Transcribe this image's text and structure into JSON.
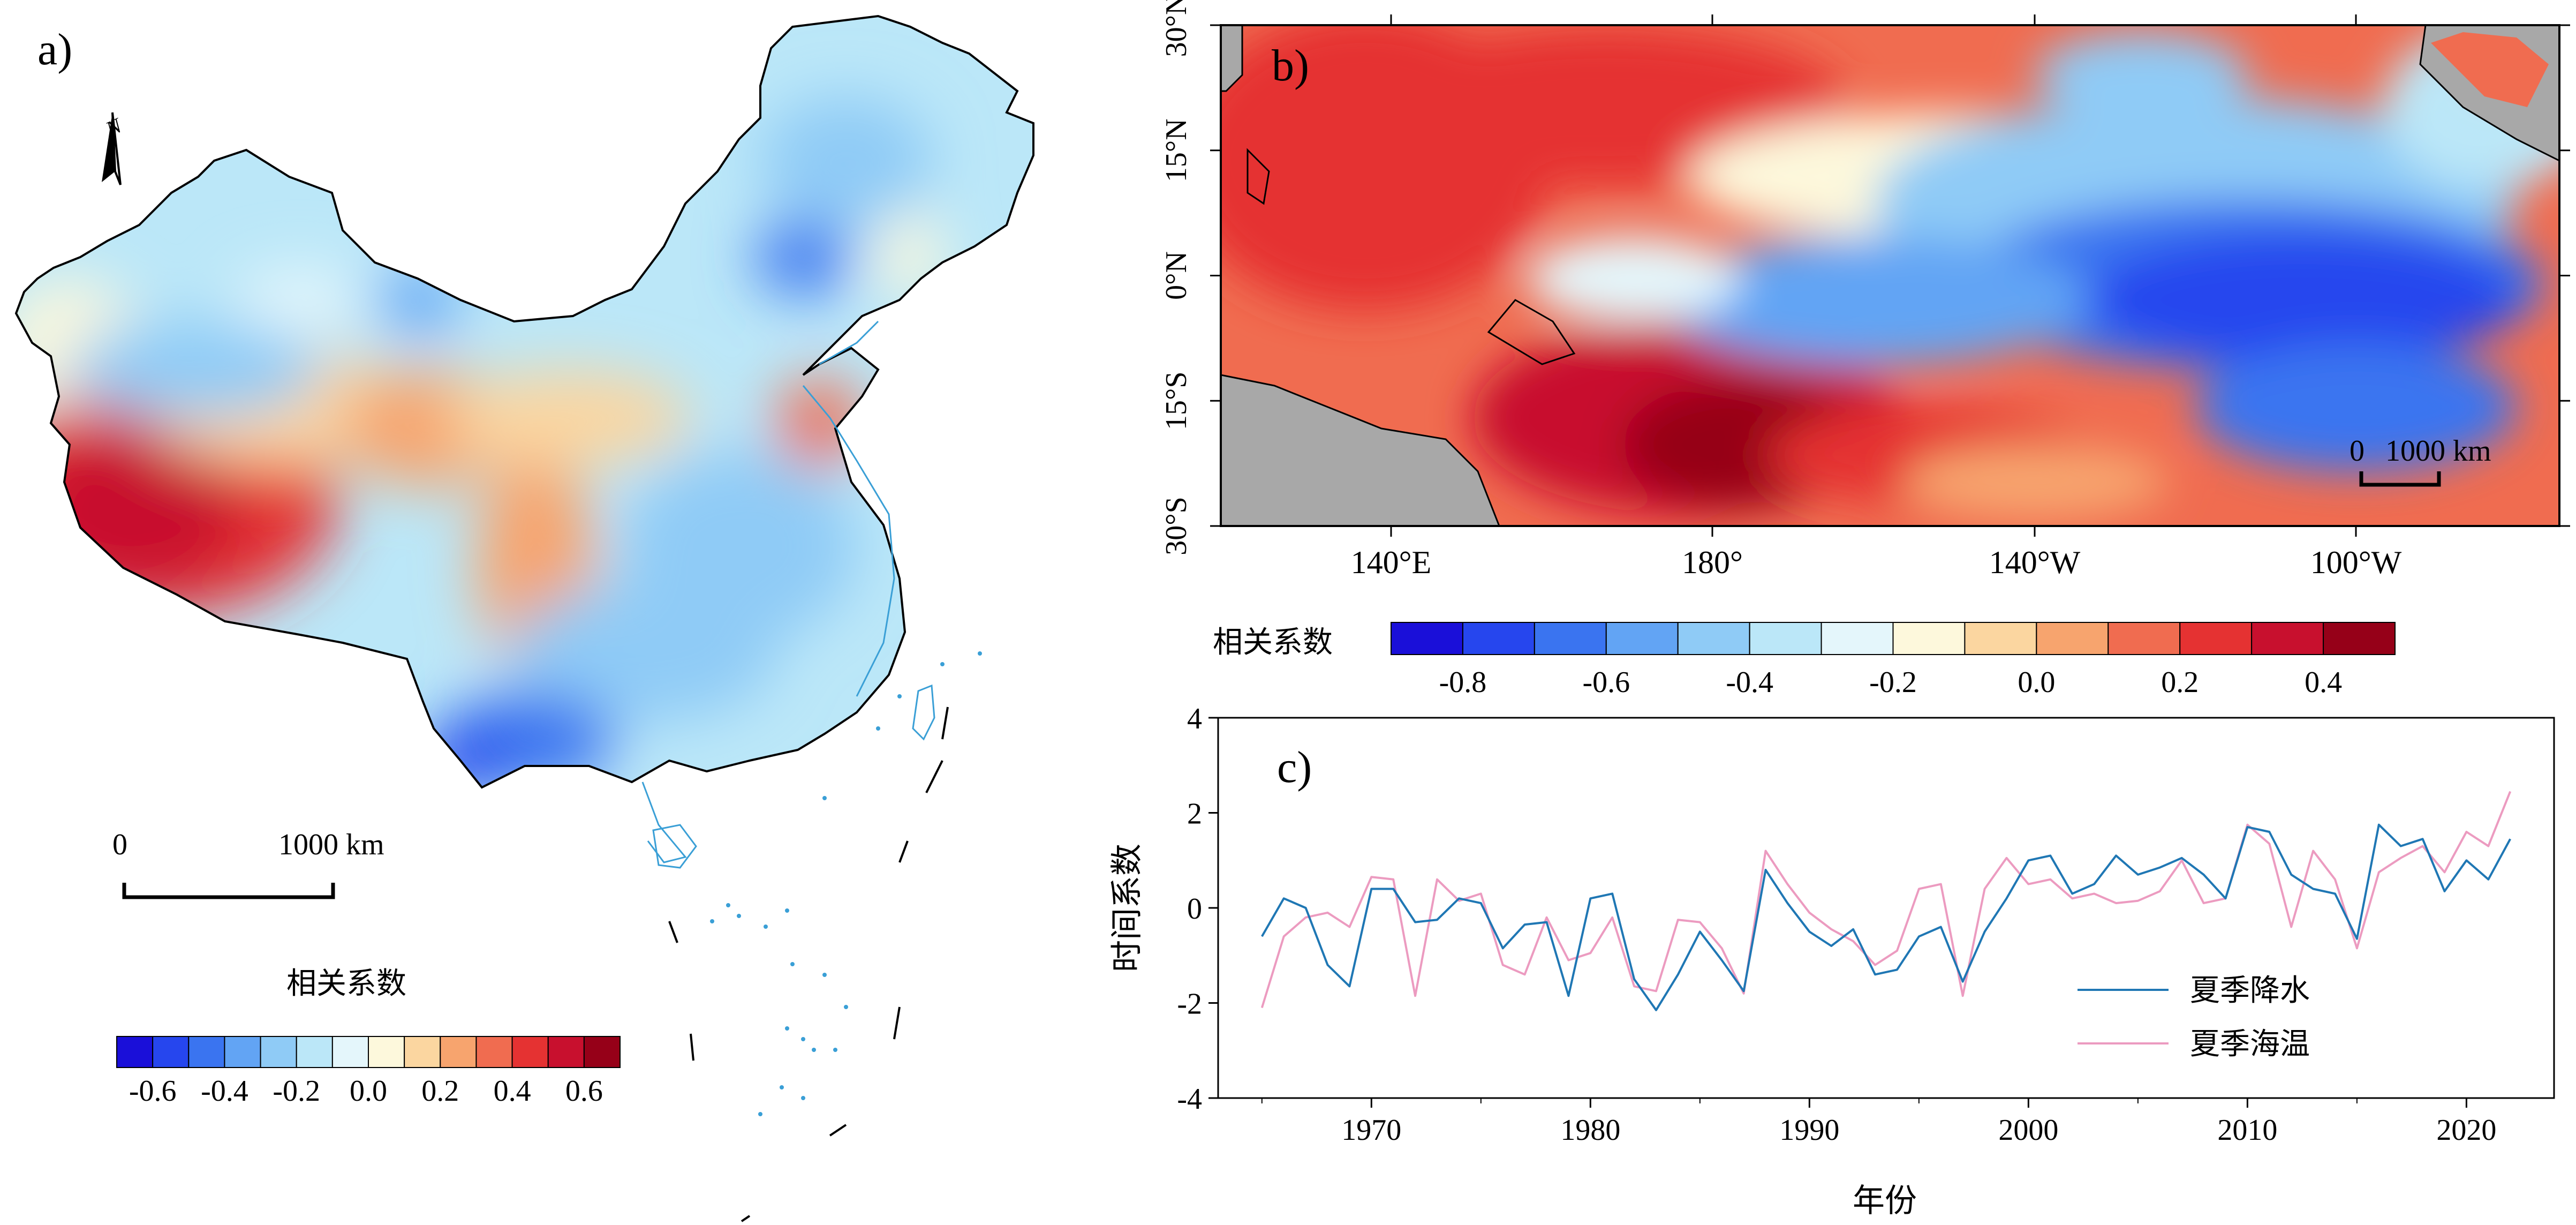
{
  "colors": {
    "ramp": [
      "#1a0fd9",
      "#2646ee",
      "#3a74f0",
      "#62a4f4",
      "#8fcbf6",
      "#bbe7f8",
      "#e4f6fb",
      "#fdf8dc",
      "#fbd6a0",
      "#f7a46e",
      "#f06c50",
      "#e53232",
      "#c8102e",
      "#960018"
    ],
    "land": "#a8a8a8",
    "line_precip": "#1f77b4",
    "line_sst": "#ec9bc0",
    "coast": "#000000",
    "river": "#3a9fd6"
  },
  "panel_a": {
    "label": "a)",
    "north_label": "N",
    "scale_bar": {
      "start": "0",
      "end": "1000 km"
    },
    "colorbar": {
      "title": "相关系数",
      "ticks": [
        "-0.6",
        "-0.4",
        "-0.2",
        "0.0",
        "0.2",
        "0.4",
        "0.6"
      ]
    }
  },
  "panel_b": {
    "label": "b)",
    "x_ticks": [
      "140°E",
      "180°",
      "140°W",
      "100°W"
    ],
    "y_ticks": [
      "30°N",
      "15°N",
      "0°N",
      "15°S",
      "30°S"
    ],
    "scale_bar": {
      "start": "0",
      "end": "1000 km"
    },
    "colorbar": {
      "title": "相关系数",
      "ticks": [
        "-0.8",
        "-0.6",
        "-0.4",
        "-0.2",
        "0.0",
        "0.2",
        "0.4"
      ]
    }
  },
  "chart_data": {
    "type": "line",
    "label": "c)",
    "title": "",
    "xlabel": "年份",
    "ylabel": "时间系数",
    "xlim": [
      1963,
      2024
    ],
    "ylim": [
      -4,
      4
    ],
    "x_ticks": [
      1970,
      1980,
      1990,
      2000,
      2010,
      2020
    ],
    "y_ticks": [
      -4,
      -2,
      0,
      2,
      4
    ],
    "legend_position": "lower-right",
    "x": [
      1965,
      1966,
      1967,
      1968,
      1969,
      1970,
      1971,
      1972,
      1973,
      1974,
      1975,
      1976,
      1977,
      1978,
      1979,
      1980,
      1981,
      1982,
      1983,
      1984,
      1985,
      1986,
      1987,
      1988,
      1989,
      1990,
      1991,
      1992,
      1993,
      1994,
      1995,
      1996,
      1997,
      1998,
      1999,
      2000,
      2001,
      2002,
      2003,
      2004,
      2005,
      2006,
      2007,
      2008,
      2009,
      2010,
      2011,
      2012,
      2013,
      2014,
      2015,
      2016,
      2017,
      2018,
      2019,
      2020,
      2021,
      2022
    ],
    "series": [
      {
        "name": "夏季降水",
        "values": [
          -0.6,
          0.2,
          0.0,
          -1.2,
          -1.65,
          0.4,
          0.4,
          -0.3,
          -0.25,
          0.2,
          0.1,
          -0.85,
          -0.35,
          -0.3,
          -1.85,
          0.2,
          0.3,
          -1.5,
          -2.15,
          -1.4,
          -0.5,
          -1.1,
          -1.75,
          0.8,
          0.1,
          -0.5,
          -0.8,
          -0.45,
          -1.4,
          -1.3,
          -0.6,
          -0.4,
          -1.55,
          -0.5,
          0.2,
          1.0,
          1.1,
          0.3,
          0.5,
          1.1,
          0.7,
          0.85,
          1.05,
          0.7,
          0.2,
          1.7,
          1.6,
          0.7,
          0.4,
          0.3,
          -0.65,
          1.75,
          1.3,
          1.45,
          0.35,
          1.0,
          0.6,
          1.45
        ]
      },
      {
        "name": "夏季海温",
        "values": [
          -2.1,
          -0.6,
          -0.2,
          -0.1,
          -0.4,
          0.65,
          0.6,
          -1.85,
          0.6,
          0.15,
          0.3,
          -1.2,
          -1.4,
          -0.2,
          -1.1,
          -0.95,
          -0.2,
          -1.65,
          -1.75,
          -0.25,
          -0.3,
          -0.85,
          -1.8,
          1.2,
          0.5,
          -0.1,
          -0.45,
          -0.7,
          -1.2,
          -0.9,
          0.4,
          0.5,
          -1.85,
          0.4,
          1.05,
          0.5,
          0.6,
          0.2,
          0.3,
          0.1,
          0.15,
          0.35,
          1.0,
          0.1,
          0.2,
          1.75,
          1.35,
          -0.4,
          1.2,
          0.6,
          -0.85,
          0.75,
          1.05,
          1.3,
          0.75,
          1.6,
          1.3,
          2.45
        ]
      }
    ]
  }
}
